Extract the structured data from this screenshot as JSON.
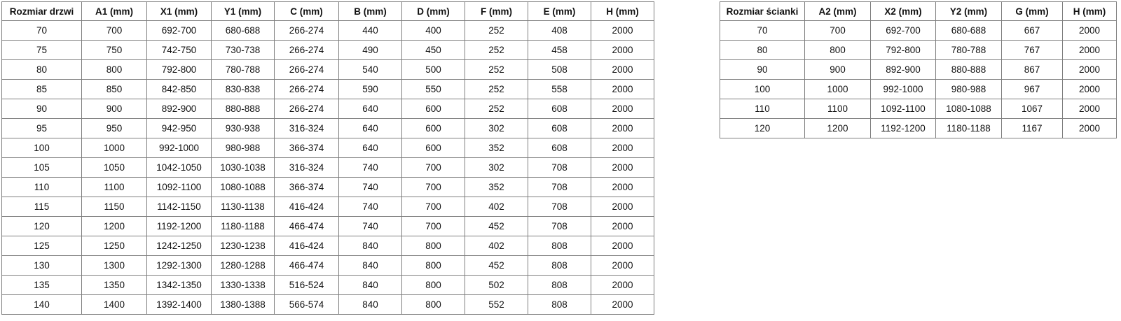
{
  "colors": {
    "background": "#ffffff",
    "border": "#7f7f7f",
    "text": "#111111"
  },
  "tables": [
    {
      "id": "door-size-table",
      "headers": [
        "Rozmiar drzwi",
        "A1 (mm)",
        "X1 (mm)",
        "Y1 (mm)",
        "C (mm)",
        "B (mm)",
        "D (mm)",
        "F (mm)",
        "E (mm)",
        "H (mm)"
      ],
      "rows": [
        [
          "70",
          "700",
          "692-700",
          "680-688",
          "266-274",
          "440",
          "400",
          "252",
          "408",
          "2000"
        ],
        [
          "75",
          "750",
          "742-750",
          "730-738",
          "266-274",
          "490",
          "450",
          "252",
          "458",
          "2000"
        ],
        [
          "80",
          "800",
          "792-800",
          "780-788",
          "266-274",
          "540",
          "500",
          "252",
          "508",
          "2000"
        ],
        [
          "85",
          "850",
          "842-850",
          "830-838",
          "266-274",
          "590",
          "550",
          "252",
          "558",
          "2000"
        ],
        [
          "90",
          "900",
          "892-900",
          "880-888",
          "266-274",
          "640",
          "600",
          "252",
          "608",
          "2000"
        ],
        [
          "95",
          "950",
          "942-950",
          "930-938",
          "316-324",
          "640",
          "600",
          "302",
          "608",
          "2000"
        ],
        [
          "100",
          "1000",
          "992-1000",
          "980-988",
          "366-374",
          "640",
          "600",
          "352",
          "608",
          "2000"
        ],
        [
          "105",
          "1050",
          "1042-1050",
          "1030-1038",
          "316-324",
          "740",
          "700",
          "302",
          "708",
          "2000"
        ],
        [
          "110",
          "1100",
          "1092-1100",
          "1080-1088",
          "366-374",
          "740",
          "700",
          "352",
          "708",
          "2000"
        ],
        [
          "115",
          "1150",
          "1142-1150",
          "1130-1138",
          "416-424",
          "740",
          "700",
          "402",
          "708",
          "2000"
        ],
        [
          "120",
          "1200",
          "1192-1200",
          "1180-1188",
          "466-474",
          "740",
          "700",
          "452",
          "708",
          "2000"
        ],
        [
          "125",
          "1250",
          "1242-1250",
          "1230-1238",
          "416-424",
          "840",
          "800",
          "402",
          "808",
          "2000"
        ],
        [
          "130",
          "1300",
          "1292-1300",
          "1280-1288",
          "466-474",
          "840",
          "800",
          "452",
          "808",
          "2000"
        ],
        [
          "135",
          "1350",
          "1342-1350",
          "1330-1338",
          "516-524",
          "840",
          "800",
          "502",
          "808",
          "2000"
        ],
        [
          "140",
          "1400",
          "1392-1400",
          "1380-1388",
          "566-574",
          "840",
          "800",
          "552",
          "808",
          "2000"
        ]
      ]
    },
    {
      "id": "wall-size-table",
      "headers": [
        "Rozmiar ścianki",
        "A2 (mm)",
        "X2 (mm)",
        "Y2 (mm)",
        "G (mm)",
        "H (mm)"
      ],
      "rows": [
        [
          "70",
          "700",
          "692-700",
          "680-688",
          "667",
          "2000"
        ],
        [
          "80",
          "800",
          "792-800",
          "780-788",
          "767",
          "2000"
        ],
        [
          "90",
          "900",
          "892-900",
          "880-888",
          "867",
          "2000"
        ],
        [
          "100",
          "1000",
          "992-1000",
          "980-988",
          "967",
          "2000"
        ],
        [
          "110",
          "1100",
          "1092-1100",
          "1080-1088",
          "1067",
          "2000"
        ],
        [
          "120",
          "1200",
          "1192-1200",
          "1180-1188",
          "1167",
          "2000"
        ]
      ]
    }
  ]
}
